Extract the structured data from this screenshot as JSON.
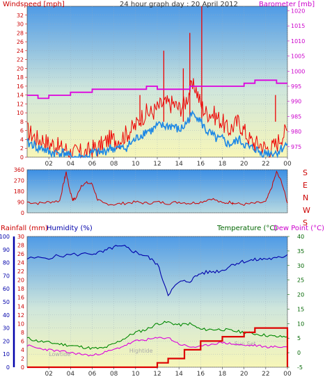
{
  "header": {
    "title": "24 hour graph day : 20 April 2012",
    "left_label": "Windspeed [mph]",
    "right_label": "Barometer [mb]"
  },
  "colors": {
    "wind": "#ee0000",
    "gust_avg": "#1e88e5",
    "barometer": "#dd00dd",
    "humidity": "#0000aa",
    "temperature": "#008800",
    "dewpoint": "#dd00dd",
    "rain": "#dd0000",
    "axis_red": "#cc0000",
    "axis_blue": "#0000aa",
    "axis_green": "#006600"
  },
  "chart_data": [
    {
      "type": "line",
      "name": "wind-panel",
      "x_ticks": [
        "02",
        "04",
        "06",
        "08",
        "10",
        "12",
        "14",
        "16",
        "18",
        "20",
        "22",
        "00"
      ],
      "y_left": {
        "label": "Windspeed [mph]",
        "ticks": [
          0,
          2,
          4,
          6,
          8,
          10,
          12,
          14,
          16,
          18,
          20,
          22,
          24,
          26,
          28,
          30,
          32
        ],
        "range": [
          0,
          34
        ]
      },
      "y_right": {
        "label": "Barometer [mb]",
        "ticks": [
          975,
          980,
          985,
          990,
          995,
          1000,
          1005,
          1010,
          1015,
          1020
        ],
        "range": [
          971.5,
          1021.5
        ]
      },
      "series": [
        {
          "key": "wind",
          "x": [
            0,
            0.5,
            1,
            1.5,
            2,
            2.5,
            3,
            3.5,
            4,
            4.5,
            5,
            5.5,
            6,
            6.5,
            7,
            7.5,
            8,
            8.5,
            9,
            9.5,
            10,
            10.5,
            11,
            11.5,
            12,
            12.5,
            13,
            13.5,
            14,
            14.5,
            15,
            15.5,
            16,
            16.5,
            17,
            17.5,
            18,
            18.5,
            19,
            19.5,
            20,
            20.5,
            21,
            21.5,
            22,
            22.5,
            23,
            23.5,
            24
          ],
          "values": [
            6,
            5,
            4,
            4,
            3,
            3,
            2,
            2,
            1,
            1,
            1,
            1,
            2,
            2,
            3,
            4,
            4,
            4,
            5,
            6,
            7,
            9,
            10,
            10,
            11,
            12,
            12,
            12,
            11,
            12,
            15,
            16,
            12,
            10,
            10,
            9,
            8,
            6,
            7,
            8,
            6,
            4,
            3,
            3,
            2,
            2,
            3,
            5,
            6
          ]
        },
        {
          "key": "gust_avg",
          "x": [
            0,
            0.5,
            1,
            1.5,
            2,
            2.5,
            3,
            3.5,
            4,
            4.5,
            5,
            5.5,
            6,
            6.5,
            7,
            7.5,
            8,
            8.5,
            9,
            9.5,
            10,
            10.5,
            11,
            11.5,
            12,
            12.5,
            13,
            13.5,
            14,
            14.5,
            15,
            15.5,
            16,
            16.5,
            17,
            17.5,
            18,
            18.5,
            19,
            19.5,
            20,
            20.5,
            21,
            21.5,
            22,
            22.5,
            23,
            23.5,
            24
          ],
          "values": [
            3,
            3,
            2,
            2,
            1,
            1,
            1,
            1,
            0,
            0,
            0,
            0,
            1,
            1,
            1,
            2,
            2,
            2,
            2,
            3,
            4,
            5,
            6,
            6,
            7,
            7,
            7,
            7,
            6,
            7,
            9,
            10,
            8,
            6,
            5,
            4,
            4,
            3,
            3,
            4,
            3,
            2,
            2,
            1,
            1,
            1,
            1,
            2,
            3
          ]
        },
        {
          "key": "barometer",
          "x": [
            0,
            1,
            2,
            4,
            5,
            6,
            8,
            10,
            11,
            12,
            14,
            15,
            16,
            17,
            19,
            20,
            21,
            22,
            23,
            24
          ],
          "values": [
            992,
            991,
            992,
            993,
            993,
            994,
            994,
            994,
            995,
            994,
            994,
            995,
            995,
            995,
            995,
            996,
            997,
            997,
            996,
            996
          ]
        }
      ],
      "wind_peak": {
        "x": 16.1,
        "value": 34
      },
      "wind_spikes": [
        {
          "x": 12.6,
          "value": 24
        },
        {
          "x": 14.4,
          "value": 20
        },
        {
          "x": 15.0,
          "value": 28
        },
        {
          "x": 10.4,
          "value": 14
        },
        {
          "x": 22.9,
          "value": 14
        }
      ]
    },
    {
      "type": "line",
      "name": "direction-panel",
      "y_left": {
        "ticks": [
          0,
          90,
          180,
          270,
          360
        ],
        "range": [
          0,
          360
        ]
      },
      "compass": [
        "S",
        "E",
        "N",
        "W",
        "S"
      ],
      "series": [
        {
          "key": "direction",
          "x": [
            0,
            1,
            2,
            3,
            3.4,
            3.6,
            3.9,
            4.2,
            4.5,
            5,
            5.5,
            6,
            6.5,
            7,
            8,
            9,
            10,
            11,
            12,
            13,
            14,
            15,
            16,
            17,
            18,
            18.8,
            19,
            20,
            21,
            22,
            22.5,
            23,
            23.5,
            24
          ],
          "values": [
            90,
            80,
            90,
            100,
            260,
            340,
            200,
            110,
            120,
            230,
            250,
            240,
            110,
            80,
            70,
            80,
            90,
            80,
            90,
            80,
            90,
            80,
            90,
            120,
            80,
            90,
            80,
            70,
            80,
            90,
            200,
            340,
            250,
            80
          ]
        }
      ]
    },
    {
      "type": "line",
      "name": "temp-humidity-panel",
      "titles": {
        "rainfall": "Rainfall (mm)",
        "humidity": "Humidity (%)",
        "temperature": "Temperature (°C)",
        "dewpoint": "Dew Point (°C)"
      },
      "y_humidity": {
        "ticks": [
          0,
          10,
          20,
          30,
          40,
          50,
          60,
          70,
          80,
          90,
          100
        ],
        "range": [
          0,
          100
        ]
      },
      "y_rain": {
        "ticks": [
          0,
          2,
          4,
          6,
          8,
          10,
          12,
          14,
          16,
          18,
          20,
          22,
          24,
          26,
          28,
          30
        ],
        "range": [
          0,
          30
        ]
      },
      "y_temp": {
        "ticks": [
          -5,
          0,
          5,
          10,
          15,
          20,
          25,
          30,
          35,
          40
        ],
        "range": [
          -5,
          40
        ]
      },
      "x_ticks": [
        "02",
        "04",
        "06",
        "08",
        "10",
        "12",
        "14",
        "16",
        "18",
        "20",
        "22",
        "00"
      ],
      "annotations": [
        {
          "text": "Lowtide",
          "x": 3
        },
        {
          "text": "Hightide",
          "x": 10.5
        },
        {
          "text": "Sun Set",
          "x": 20.1
        }
      ],
      "series": [
        {
          "key": "humidity",
          "x": [
            0,
            2,
            4,
            6,
            7,
            8,
            9,
            10,
            11,
            12,
            13,
            14,
            15,
            16,
            17,
            18,
            19,
            20,
            21,
            22,
            23,
            24
          ],
          "values": [
            83,
            84,
            86,
            87,
            88,
            92,
            92,
            88,
            85,
            79,
            56,
            65,
            66,
            72,
            73,
            74,
            79,
            81,
            82,
            83,
            83,
            86
          ]
        },
        {
          "key": "temperature",
          "x": [
            0,
            1,
            2,
            3,
            4,
            5,
            6,
            7,
            8,
            9,
            10,
            11,
            12,
            13,
            14,
            15,
            16,
            17,
            18,
            19,
            20,
            21,
            22,
            23,
            24
          ],
          "values": [
            5,
            4,
            3.5,
            3,
            2.5,
            2,
            1.5,
            1.5,
            3,
            5,
            7,
            8,
            10,
            10.5,
            9.5,
            10,
            8,
            8,
            8,
            7.5,
            7,
            6.5,
            6,
            5.5,
            5.5
          ]
        },
        {
          "key": "dewpoint",
          "x": [
            0,
            1,
            2,
            3,
            4,
            5,
            6,
            7,
            8,
            9,
            10,
            11,
            12,
            13,
            14,
            15,
            16,
            17,
            18,
            19,
            20,
            21,
            22,
            23,
            24
          ],
          "values": [
            2.5,
            1.5,
            1,
            0.5,
            0,
            -0.5,
            -1,
            0,
            1,
            2.5,
            4,
            4.5,
            5,
            5.2,
            3,
            2,
            2,
            3,
            3.5,
            3,
            2.5,
            2.5,
            2,
            2,
            2
          ]
        },
        {
          "key": "rain",
          "x": [
            0,
            9,
            11,
            12,
            12.5,
            13,
            14,
            14.5,
            15.5,
            16,
            17,
            18,
            19,
            20,
            21,
            22,
            24
          ],
          "values": [
            0,
            0,
            0,
            1,
            1,
            2,
            2,
            4,
            4,
            6,
            6,
            7,
            7,
            8,
            9,
            9,
            9
          ]
        }
      ]
    }
  ]
}
